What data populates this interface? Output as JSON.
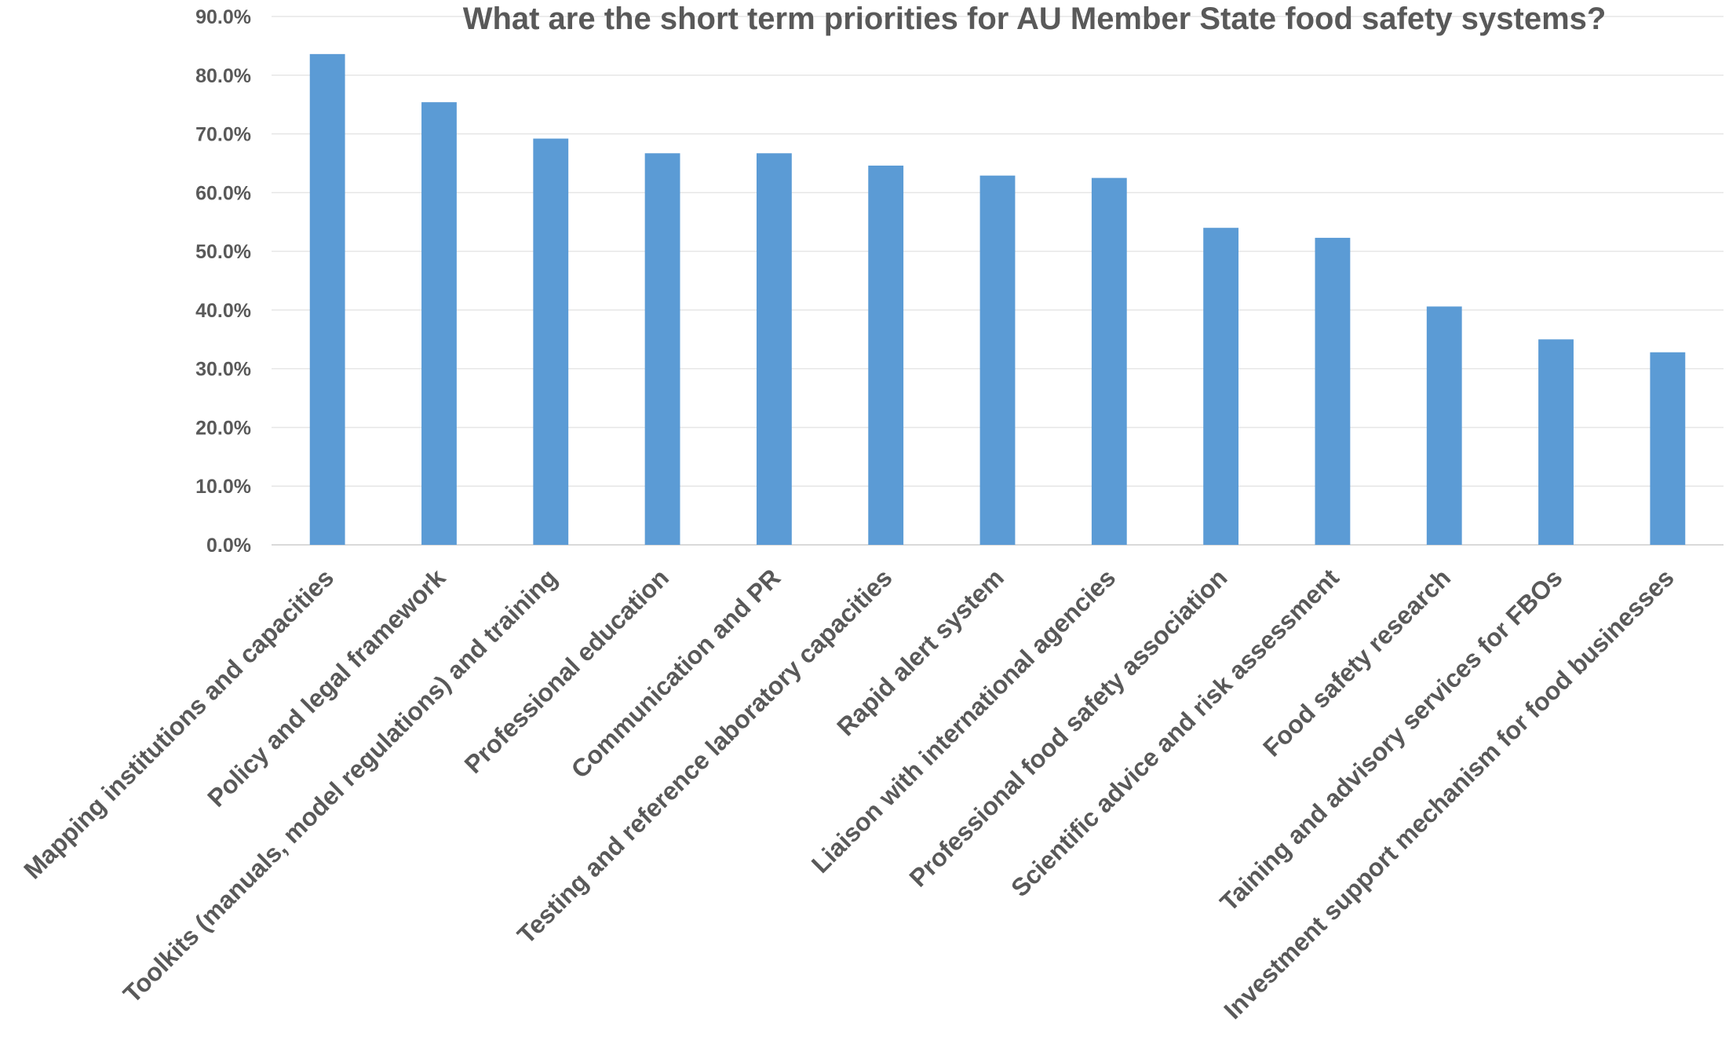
{
  "chart_data": {
    "type": "bar",
    "title": "What are the short term priorities for AU Member State food safety systems?",
    "xlabel": "",
    "ylabel": "",
    "ylim": [
      0,
      90
    ],
    "yticks": [
      "0.0%",
      "10.0%",
      "20.0%",
      "30.0%",
      "40.0%",
      "50.0%",
      "60.0%",
      "70.0%",
      "80.0%",
      "90.0%"
    ],
    "grid": true,
    "bar_color": "#5B9BD5",
    "categories": [
      "Mapping institutions and capacities",
      "Policy and legal framework",
      "Toolkits (manuals, model regulations) and training",
      "Professional education",
      "Communication and PR",
      "Testing and reference laboratory capacities",
      "Rapid alert system",
      "Liaison with international agencies",
      "Professional food safety association",
      "Scientific advice and risk assessment",
      "Food safety research",
      "Taining and advisory services for FBOs",
      "Investment support mechanism for food businesses"
    ],
    "values": [
      83.6,
      75.4,
      69.2,
      66.7,
      66.7,
      64.6,
      62.9,
      62.5,
      54.0,
      52.3,
      40.6,
      35.0,
      32.8
    ]
  }
}
